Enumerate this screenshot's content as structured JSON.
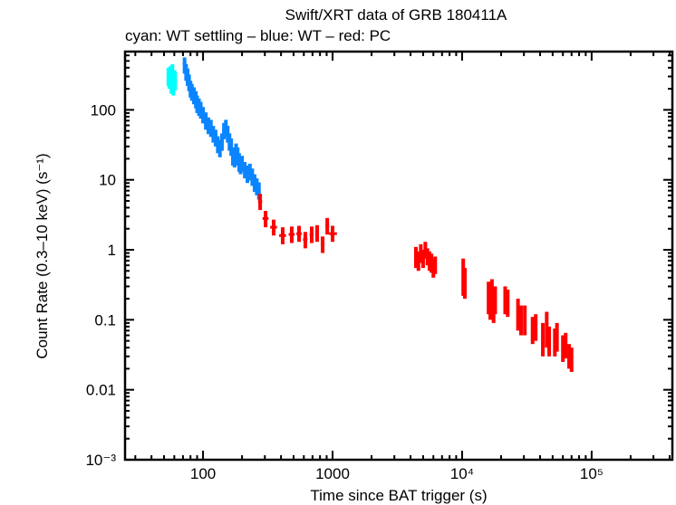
{
  "chart_data": {
    "type": "scatter",
    "title": "Swift/XRT data of GRB 180411A",
    "subtitle": "cyan: WT settling – blue: WT – red: PC",
    "xlabel": "Time since BAT trigger (s)",
    "ylabel": "Count Rate (0.3–10 keV) (s⁻¹)",
    "xscale": "log",
    "yscale": "log",
    "xlim": [
      25,
      420000
    ],
    "ylim": [
      0.001,
      680
    ],
    "grid": false,
    "legend": "none",
    "xticks": [
      {
        "value": 100,
        "label": "100"
      },
      {
        "value": 1000,
        "label": "1000"
      },
      {
        "value": 10000,
        "label": "10⁴"
      },
      {
        "value": 100000,
        "label": "10⁵"
      }
    ],
    "yticks": [
      {
        "value": 0.001,
        "label": "10⁻³"
      },
      {
        "value": 0.01,
        "label": "0.01"
      },
      {
        "value": 0.1,
        "label": "0.1"
      },
      {
        "value": 1,
        "label": "1"
      },
      {
        "value": 10,
        "label": "10"
      },
      {
        "value": 100,
        "label": "100"
      }
    ],
    "series": [
      {
        "mode": "WT settling",
        "color": "#00ffff",
        "columns": [
          "t",
          "rate",
          "rate_lo",
          "rate_hi"
        ],
        "points": [
          [
            54,
            300,
            220,
            400
          ],
          [
            55,
            280,
            200,
            380
          ],
          [
            56,
            320,
            240,
            420
          ],
          [
            57,
            250,
            170,
            340
          ],
          [
            58,
            350,
            260,
            450
          ],
          [
            59,
            230,
            160,
            320
          ],
          [
            60,
            280,
            200,
            370
          ],
          [
            61,
            260,
            190,
            350
          ]
        ]
      },
      {
        "mode": "WT",
        "color": "#0a84ff",
        "columns": [
          "t",
          "rate",
          "rate_lo",
          "rate_hi"
        ],
        "points": [
          [
            72,
            450,
            330,
            560
          ],
          [
            74,
            350,
            260,
            450
          ],
          [
            76,
            300,
            220,
            390
          ],
          [
            78,
            250,
            185,
            320
          ],
          [
            80,
            200,
            150,
            260
          ],
          [
            82,
            180,
            135,
            235
          ],
          [
            85,
            160,
            120,
            210
          ],
          [
            88,
            140,
            105,
            185
          ],
          [
            90,
            120,
            90,
            160
          ],
          [
            93,
            110,
            82,
            145
          ],
          [
            96,
            100,
            75,
            130
          ],
          [
            100,
            85,
            64,
            110
          ],
          [
            105,
            70,
            52,
            92
          ],
          [
            110,
            60,
            45,
            78
          ],
          [
            115,
            55,
            41,
            72
          ],
          [
            120,
            45,
            34,
            59
          ],
          [
            125,
            40,
            30,
            52
          ],
          [
            130,
            32,
            24,
            42
          ],
          [
            135,
            28,
            21,
            37
          ],
          [
            140,
            35,
            26,
            46
          ],
          [
            145,
            50,
            38,
            65
          ],
          [
            150,
            55,
            41,
            72
          ],
          [
            155,
            45,
            34,
            59
          ],
          [
            160,
            35,
            26,
            46
          ],
          [
            165,
            30,
            22,
            39
          ],
          [
            170,
            22,
            16,
            29
          ],
          [
            175,
            20,
            15,
            26
          ],
          [
            180,
            25,
            19,
            33
          ],
          [
            185,
            22,
            16,
            29
          ],
          [
            190,
            18,
            13,
            24
          ],
          [
            195,
            16,
            12,
            21
          ],
          [
            200,
            17,
            13,
            22
          ],
          [
            210,
            14,
            10.5,
            18
          ],
          [
            220,
            12,
            9,
            16
          ],
          [
            230,
            13,
            9.8,
            17
          ],
          [
            240,
            11,
            8.2,
            14.5
          ],
          [
            250,
            9,
            6.7,
            12
          ],
          [
            260,
            8,
            6,
            10.5
          ],
          [
            270,
            7,
            5.2,
            9.2
          ]
        ]
      },
      {
        "mode": "PC",
        "color": "#ff0000",
        "columns": [
          "t",
          "t_lo",
          "t_hi",
          "rate",
          "rate_lo",
          "rate_hi"
        ],
        "points": [
          [
            276,
            266,
            286,
            4.9,
            3.7,
            6.3
          ],
          [
            304,
            288,
            320,
            2.8,
            2.1,
            3.6
          ],
          [
            351,
            330,
            372,
            2.1,
            1.6,
            2.7
          ],
          [
            412,
            387,
            437,
            1.6,
            1.2,
            2.1
          ],
          [
            484,
            458,
            510,
            1.66,
            1.25,
            2.15
          ],
          [
            551,
            525,
            577,
            1.7,
            1.3,
            2.2
          ],
          [
            616,
            592,
            640,
            1.4,
            1.05,
            1.8
          ],
          [
            690,
            665,
            715,
            1.66,
            1.25,
            2.15
          ],
          [
            760,
            735,
            785,
            1.75,
            1.3,
            2.25
          ],
          [
            838,
            810,
            866,
            1.2,
            0.9,
            1.55
          ],
          [
            910,
            880,
            940,
            2.2,
            1.65,
            2.85
          ],
          [
            1000,
            940,
            1080,
            1.7,
            1.3,
            2.2
          ],
          [
            4400,
            4350,
            4450,
            0.8,
            0.55,
            1.1
          ],
          [
            4600,
            4550,
            4650,
            0.7,
            0.5,
            0.95
          ],
          [
            4800,
            4750,
            4850,
            0.9,
            0.65,
            1.2
          ],
          [
            5000,
            4950,
            5050,
            0.75,
            0.55,
            1.0
          ],
          [
            5200,
            5150,
            5250,
            1.0,
            0.75,
            1.3
          ],
          [
            5400,
            5350,
            5450,
            0.8,
            0.6,
            1.05
          ],
          [
            5600,
            5550,
            5650,
            0.7,
            0.5,
            0.95
          ],
          [
            5800,
            5750,
            5850,
            0.65,
            0.47,
            0.88
          ],
          [
            6000,
            5950,
            6050,
            0.55,
            0.4,
            0.75
          ],
          [
            6200,
            6150,
            6250,
            0.6,
            0.45,
            0.8
          ],
          [
            10200,
            10100,
            10300,
            0.45,
            0.22,
            0.75
          ],
          [
            10500,
            10400,
            10600,
            0.35,
            0.2,
            0.55
          ],
          [
            16000,
            15800,
            16200,
            0.22,
            0.12,
            0.35
          ],
          [
            16500,
            16300,
            16700,
            0.18,
            0.1,
            0.3
          ],
          [
            17000,
            16800,
            17200,
            0.25,
            0.14,
            0.38
          ],
          [
            17500,
            17300,
            17700,
            0.15,
            0.09,
            0.24
          ],
          [
            18000,
            17800,
            18200,
            0.2,
            0.12,
            0.3
          ],
          [
            21500,
            21200,
            21800,
            0.2,
            0.12,
            0.3
          ],
          [
            22500,
            22200,
            22800,
            0.18,
            0.11,
            0.27
          ],
          [
            27000,
            26700,
            27300,
            0.12,
            0.07,
            0.2
          ],
          [
            28500,
            28200,
            28800,
            0.1,
            0.06,
            0.16
          ],
          [
            30500,
            30200,
            30800,
            0.11,
            0.06,
            0.16
          ],
          [
            35000,
            34600,
            35400,
            0.07,
            0.045,
            0.11
          ],
          [
            37000,
            36600,
            37400,
            0.08,
            0.05,
            0.12
          ],
          [
            42000,
            41600,
            42400,
            0.06,
            0.03,
            0.09
          ],
          [
            45000,
            44600,
            45400,
            0.08,
            0.04,
            0.13
          ],
          [
            47000,
            46600,
            47400,
            0.05,
            0.03,
            0.08
          ],
          [
            52000,
            51500,
            52500,
            0.05,
            0.03,
            0.075
          ],
          [
            54000,
            53500,
            54500,
            0.06,
            0.035,
            0.09
          ],
          [
            60000,
            59500,
            60500,
            0.04,
            0.025,
            0.06
          ],
          [
            63000,
            62500,
            63500,
            0.045,
            0.028,
            0.065
          ],
          [
            67000,
            66400,
            67600,
            0.03,
            0.02,
            0.045
          ],
          [
            70000,
            69400,
            70600,
            0.028,
            0.018,
            0.04
          ]
        ]
      }
    ]
  }
}
